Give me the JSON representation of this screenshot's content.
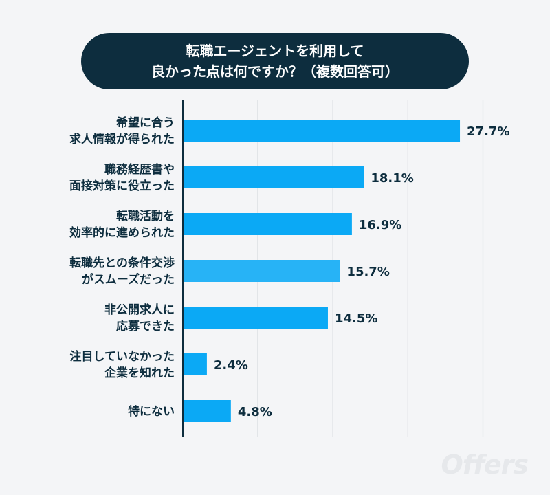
{
  "title_lines": [
    "転職エージェントを利用して",
    "良かった点は何ですか？（複数回答可）"
  ],
  "logo": "Offers",
  "colors": {
    "background": "#f4f5f7",
    "title_bg": "#0d2d3e",
    "title_text": "#ffffff",
    "bar": "#0ba9f5",
    "bar_highlight": "#27b3f6",
    "label_text": "#0d2d3e",
    "grid": "#cfd3d8",
    "axis": "#0d2d3e"
  },
  "chart_data": {
    "type": "bar",
    "orientation": "horizontal",
    "title": "転職エージェントを利用して良かった点は何ですか？（複数回答可）",
    "categories": [
      [
        "希望に合う",
        "求人情報が得られた"
      ],
      [
        "職務経歴書や",
        "面接対策に役立った"
      ],
      [
        "転職活動を",
        "効率的に進められた"
      ],
      [
        "転職先との条件交渉",
        "がスムーズだった"
      ],
      [
        "非公開求人に",
        "応募できた"
      ],
      [
        "注目していなかった",
        "企業を知れた"
      ],
      [
        "特にない"
      ]
    ],
    "values": [
      27.7,
      18.1,
      16.9,
      15.7,
      14.5,
      2.4,
      4.8
    ],
    "value_labels": [
      "27.7%",
      "18.1%",
      "16.9%",
      "15.7%",
      "14.5%",
      "2.4%",
      "4.8%"
    ],
    "xlim": [
      0,
      30
    ],
    "grid": true,
    "gridlines_at": [
      0,
      7.5,
      15,
      22.5,
      30
    ]
  }
}
